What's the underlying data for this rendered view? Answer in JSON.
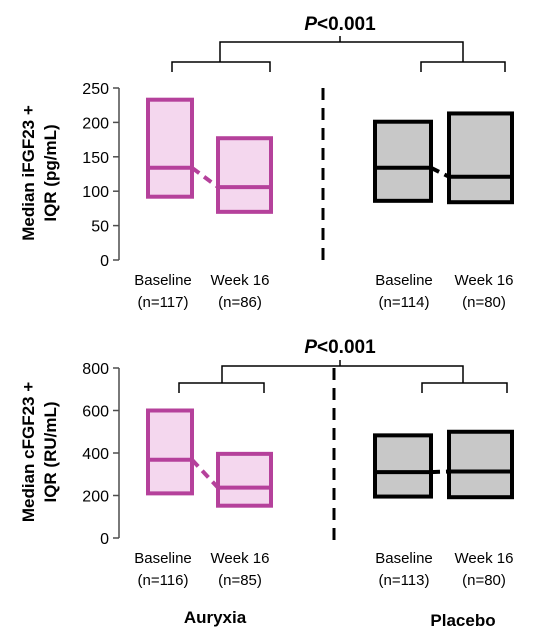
{
  "colors": {
    "auryxia_stroke": "#b5419b",
    "auryxia_fill": "#f4d7ee",
    "placebo_stroke": "#000000",
    "placebo_fill": "#c8c8c8",
    "axis": "#4d4d4d"
  },
  "groups": {
    "auryxia": "Auryxia",
    "placebo": "Placebo"
  },
  "chart_data": [
    {
      "type": "box",
      "ylabel_line1": "Median iFGF23 +",
      "ylabel_line2": "IQR (pg/mL)",
      "ylim": [
        0,
        250
      ],
      "yticks": [
        "0",
        "50",
        "100",
        "150",
        "200",
        "250"
      ],
      "significance": {
        "prefix": "P",
        "suffix": "<0.001"
      },
      "boxes": [
        {
          "group": "auryxia",
          "label": "Baseline",
          "n": "(n=117)",
          "q1": 92,
          "median": 134,
          "q3": 233
        },
        {
          "group": "auryxia",
          "label": "Week 16",
          "n": "(n=86)",
          "q1": 70,
          "median": 106,
          "q3": 177
        },
        {
          "group": "placebo",
          "label": "Baseline",
          "n": "(n=114)",
          "q1": 86,
          "median": 134,
          "q3": 201
        },
        {
          "group": "placebo",
          "label": "Week 16",
          "n": "(n=80)",
          "q1": 84,
          "median": 121,
          "q3": 213
        }
      ]
    },
    {
      "type": "box",
      "ylabel_line1": "Median cFGF23 +",
      "ylabel_line2": "IQR (RU/mL)",
      "ylim": [
        0,
        800
      ],
      "yticks": [
        "0",
        "200",
        "400",
        "600",
        "800"
      ],
      "significance": {
        "prefix": "P",
        "suffix": "<0.001"
      },
      "boxes": [
        {
          "group": "auryxia",
          "label": "Baseline",
          "n": "(n=116)",
          "q1": 210,
          "median": 368,
          "q3": 600
        },
        {
          "group": "auryxia",
          "label": "Week 16",
          "n": "(n=85)",
          "q1": 152,
          "median": 237,
          "q3": 396
        },
        {
          "group": "placebo",
          "label": "Baseline",
          "n": "(n=113)",
          "q1": 195,
          "median": 310,
          "q3": 483
        },
        {
          "group": "placebo",
          "label": "Week 16",
          "n": "(n=80)",
          "q1": 192,
          "median": 313,
          "q3": 500
        }
      ]
    }
  ]
}
